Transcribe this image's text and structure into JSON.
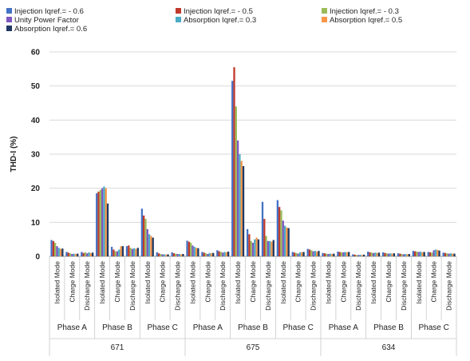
{
  "chart_data": {
    "type": "bar",
    "ylabel": "THD-I (%)",
    "ylim": [
      0,
      60
    ],
    "yticks": [
      0,
      10,
      20,
      30,
      40,
      50,
      60
    ],
    "grid": true,
    "legend_position": "top",
    "buses": [
      "671",
      "675",
      "634"
    ],
    "phases": [
      "Phase A",
      "Phase B",
      "Phase C"
    ],
    "modes": [
      "Isolated Mode",
      "Charge Mode",
      "Discharge Mode"
    ],
    "series": [
      {
        "name": "Injection  Iqref.= - 0.6",
        "color": "#4472C4",
        "values": [
          4.8,
          1.3,
          1.3,
          18.5,
          2.8,
          3.0,
          14.0,
          1.2,
          1.2,
          4.6,
          1.3,
          1.8,
          51.5,
          8.0,
          16.0,
          16.5,
          1.3,
          2.2,
          1.0,
          1.4,
          0.6,
          1.4,
          1.2,
          0.9,
          1.6,
          1.3,
          1.1
        ]
      },
      {
        "name": "Injection  Iqref.= - 0.5",
        "color": "#C0392B",
        "values": [
          4.5,
          1.1,
          1.0,
          19.0,
          2.0,
          3.2,
          12.0,
          0.9,
          0.9,
          4.3,
          1.1,
          1.5,
          55.5,
          6.5,
          11.0,
          14.5,
          1.1,
          2.0,
          0.9,
          1.3,
          0.5,
          1.2,
          1.0,
          0.8,
          1.5,
          1.2,
          1.0
        ]
      },
      {
        "name": "Injection  Iqref.= - 0.3",
        "color": "#9BBB59",
        "values": [
          4.0,
          0.9,
          1.2,
          19.5,
          1.5,
          2.5,
          11.0,
          0.7,
          0.8,
          4.0,
          0.9,
          1.3,
          44.0,
          4.5,
          6.0,
          13.5,
          1.0,
          1.8,
          0.8,
          1.2,
          0.4,
          1.1,
          0.9,
          0.7,
          1.4,
          1.1,
          0.9
        ]
      },
      {
        "name": "Unity Power Factor",
        "color": "#7E57C2",
        "values": [
          3.0,
          0.7,
          0.9,
          20.0,
          1.5,
          2.2,
          8.0,
          0.6,
          0.7,
          3.2,
          0.7,
          1.1,
          34.0,
          4.0,
          4.5,
          10.5,
          0.8,
          1.5,
          0.7,
          1.2,
          0.4,
          1.0,
          0.8,
          0.6,
          1.3,
          1.8,
          0.8
        ]
      },
      {
        "name": "Absorption Iqref.= 0.3",
        "color": "#4BACC6",
        "values": [
          2.5,
          0.8,
          1.2,
          20.5,
          2.0,
          2.4,
          6.5,
          0.6,
          0.7,
          2.8,
          1.0,
          1.3,
          30.0,
          5.0,
          4.5,
          9.0,
          1.2,
          1.6,
          0.8,
          1.3,
          0.5,
          1.1,
          0.9,
          0.7,
          1.4,
          2.0,
          0.9
        ]
      },
      {
        "name": "Absorption Iqref.= 0.5",
        "color": "#F79646",
        "values": [
          2.2,
          0.7,
          1.0,
          20.0,
          3.0,
          2.2,
          6.0,
          0.5,
          0.6,
          2.5,
          0.9,
          1.2,
          28.0,
          5.5,
          4.3,
          8.5,
          1.2,
          1.4,
          0.7,
          1.2,
          0.4,
          1.0,
          0.8,
          0.6,
          1.2,
          1.9,
          0.8
        ]
      },
      {
        "name": "Absorption Iqref.= 0.6",
        "color": "#1F3864",
        "values": [
          2.3,
          0.8,
          1.1,
          15.5,
          3.0,
          2.5,
          5.5,
          0.6,
          0.7,
          2.4,
          1.0,
          1.4,
          26.5,
          5.0,
          4.8,
          8.3,
          1.3,
          1.6,
          0.8,
          1.3,
          0.5,
          1.1,
          0.9,
          0.7,
          1.3,
          1.7,
          0.8
        ]
      }
    ]
  }
}
